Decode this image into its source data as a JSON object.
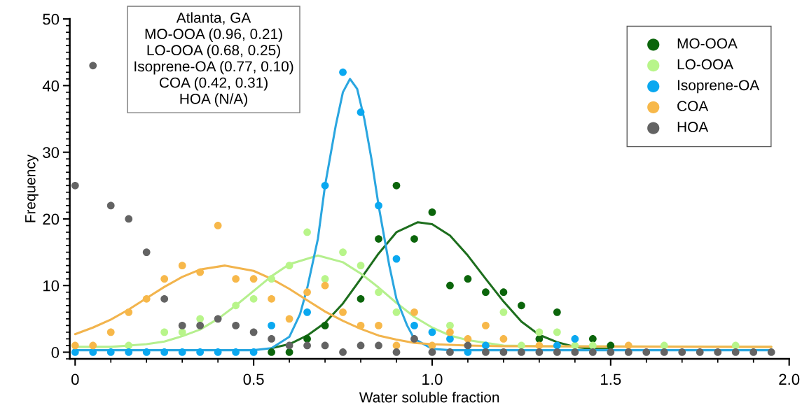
{
  "chart_data": {
    "type": "scatter",
    "xlabel": "Water soluble fraction",
    "ylabel": "Frequency",
    "annotations": [
      "Atlanta, GA",
      "MO-OOA (0.96, 0.21)",
      "LO-OOA (0.68, 0.25)",
      "Isoprene-OA (0.77, 0.10)",
      "COA (0.42, 0.31)",
      "HOA (N/A)"
    ],
    "x": [
      0,
      0.05,
      0.1,
      0.15,
      0.2,
      0.25,
      0.3,
      0.35,
      0.4,
      0.45,
      0.5,
      0.55,
      0.6,
      0.65,
      0.7,
      0.75,
      0.8,
      0.85,
      0.9,
      0.95,
      1.0,
      1.05,
      1.1,
      1.15,
      1.2,
      1.25,
      1.3,
      1.35,
      1.4,
      1.45,
      1.5,
      1.55,
      1.6,
      1.65,
      1.7,
      1.75,
      1.8,
      1.85,
      1.9,
      1.95
    ],
    "xlim": [
      -0.015,
      2.0
    ],
    "xticks": [
      0,
      0.5,
      {
        "value": 1.0,
        "label": "1.0"
      },
      1.5,
      {
        "value": 2.0,
        "label": "2.0"
      }
    ],
    "ylim": [
      -1,
      50
    ],
    "yticks": [
      0,
      10,
      20,
      30,
      40,
      50
    ],
    "marker": "circle",
    "legend": "top right",
    "series": [
      {
        "type": "line",
        "marker": "none",
        "color": "#1d6e1d",
        "x": [
          0.55,
          0.6,
          0.65,
          0.7,
          0.75,
          0.8,
          0.85,
          0.9,
          0.96,
          1.0,
          1.05,
          1.1,
          1.15,
          1.2,
          1.25,
          1.3,
          1.35,
          1.4,
          1.45,
          1.5
        ],
        "values": [
          0.6,
          1.2,
          2.5,
          4.4,
          7.3,
          11,
          14.8,
          18,
          19.5,
          19.2,
          17.5,
          14.5,
          11,
          7.6,
          4.6,
          2.6,
          1.5,
          0.8,
          0.5,
          0.5
        ]
      },
      {
        "type": "line",
        "marker": "none",
        "color": "#b5ef8e",
        "x": [
          0,
          0.1,
          0.15,
          0.2,
          0.25,
          0.3,
          0.35,
          0.4,
          0.45,
          0.5,
          0.55,
          0.6,
          0.68,
          0.75,
          0.8,
          0.85,
          0.9,
          0.95,
          1.0,
          1.05,
          1.1,
          1.2,
          1.3,
          1.95
        ],
        "values": [
          0.8,
          0.8,
          1.0,
          1.2,
          1.6,
          2.4,
          3.4,
          5.0,
          7.0,
          9.2,
          11.4,
          13.2,
          14.5,
          13.5,
          11.8,
          9.7,
          7.4,
          5.3,
          3.7,
          2.5,
          1.8,
          1.0,
          0.9,
          0.8
        ]
      },
      {
        "type": "line",
        "marker": "none",
        "color": "#2aa6e0",
        "x": [
          0,
          0.5,
          0.55,
          0.6,
          0.63,
          0.65,
          0.68,
          0.7,
          0.73,
          0.75,
          0.77,
          0.79,
          0.81,
          0.83,
          0.85,
          0.88,
          0.9,
          0.93,
          0.95,
          1.0,
          1.05,
          1.95
        ],
        "values": [
          0.3,
          0.3,
          0.6,
          2.3,
          5.7,
          9.6,
          17,
          25,
          34,
          39,
          41,
          39.5,
          35,
          29,
          22,
          13,
          8,
          4,
          2,
          0.5,
          0.3,
          0.3
        ]
      },
      {
        "type": "line",
        "marker": "none",
        "color": "#f2b44d",
        "x": [
          0,
          0.05,
          0.1,
          0.15,
          0.2,
          0.25,
          0.3,
          0.35,
          0.42,
          0.5,
          0.55,
          0.6,
          0.65,
          0.7,
          0.75,
          0.8,
          0.85,
          0.9,
          0.95,
          1.0,
          1.1,
          1.2,
          1.95
        ],
        "values": [
          2.7,
          3.7,
          4.9,
          6.4,
          8.1,
          9.8,
          11.3,
          12.4,
          13.0,
          12.2,
          11.0,
          9.5,
          7.8,
          6.1,
          4.7,
          3.5,
          2.5,
          1.9,
          1.4,
          1.2,
          1.0,
          0.9,
          0.8
        ]
      },
      {
        "name": "MO-OOA",
        "color": "#0b650b",
        "values": [
          null,
          null,
          null,
          null,
          null,
          null,
          null,
          null,
          null,
          null,
          null,
          0,
          0,
          2,
          4,
          null,
          8,
          17,
          25,
          17,
          21,
          10,
          11,
          9,
          9,
          7,
          2,
          6,
          null,
          2,
          1,
          null,
          null,
          null,
          null,
          null,
          null,
          null,
          null,
          null
        ]
      },
      {
        "name": "LO-OOA",
        "color": "#b8f58a",
        "values": [
          null,
          null,
          null,
          1,
          null,
          3,
          3,
          5,
          null,
          7,
          8,
          11,
          13,
          18,
          11,
          15,
          13,
          9,
          6,
          null,
          null,
          4,
          null,
          null,
          6,
          1,
          3,
          3,
          1,
          1,
          null,
          null,
          null,
          1,
          null,
          null,
          null,
          1,
          null,
          null
        ]
      },
      {
        "name": "Isoprene-OA",
        "color": "#0aa8f0",
        "values": [
          0,
          0,
          0,
          0,
          0,
          0,
          0,
          0,
          0,
          0,
          0,
          4,
          null,
          6,
          25,
          42,
          36,
          22,
          14,
          4,
          3,
          2,
          0,
          1,
          null,
          null,
          null,
          1,
          2,
          null,
          null,
          null,
          null,
          null,
          null,
          null,
          null,
          null,
          null,
          null
        ]
      },
      {
        "name": "COA",
        "color": "#f7b84a",
        "values": [
          1,
          1,
          3,
          6,
          8,
          11,
          13,
          12,
          19,
          11,
          11,
          8,
          5,
          9,
          10,
          6,
          4,
          4,
          1,
          6,
          1,
          3,
          2,
          4,
          2,
          null,
          1,
          null,
          null,
          null,
          null,
          1,
          null,
          null,
          null,
          null,
          null,
          null,
          null,
          null
        ]
      },
      {
        "name": "HOA",
        "color": "#636363",
        "values": [
          25,
          43,
          22,
          20,
          15,
          8,
          4,
          4,
          5,
          4,
          3,
          2,
          1,
          1,
          1,
          0,
          1,
          1,
          0,
          2,
          0,
          0,
          1,
          0,
          0,
          0,
          0,
          0,
          0,
          0,
          0,
          0,
          0,
          0,
          0,
          0,
          0,
          0,
          0,
          0
        ]
      }
    ]
  }
}
